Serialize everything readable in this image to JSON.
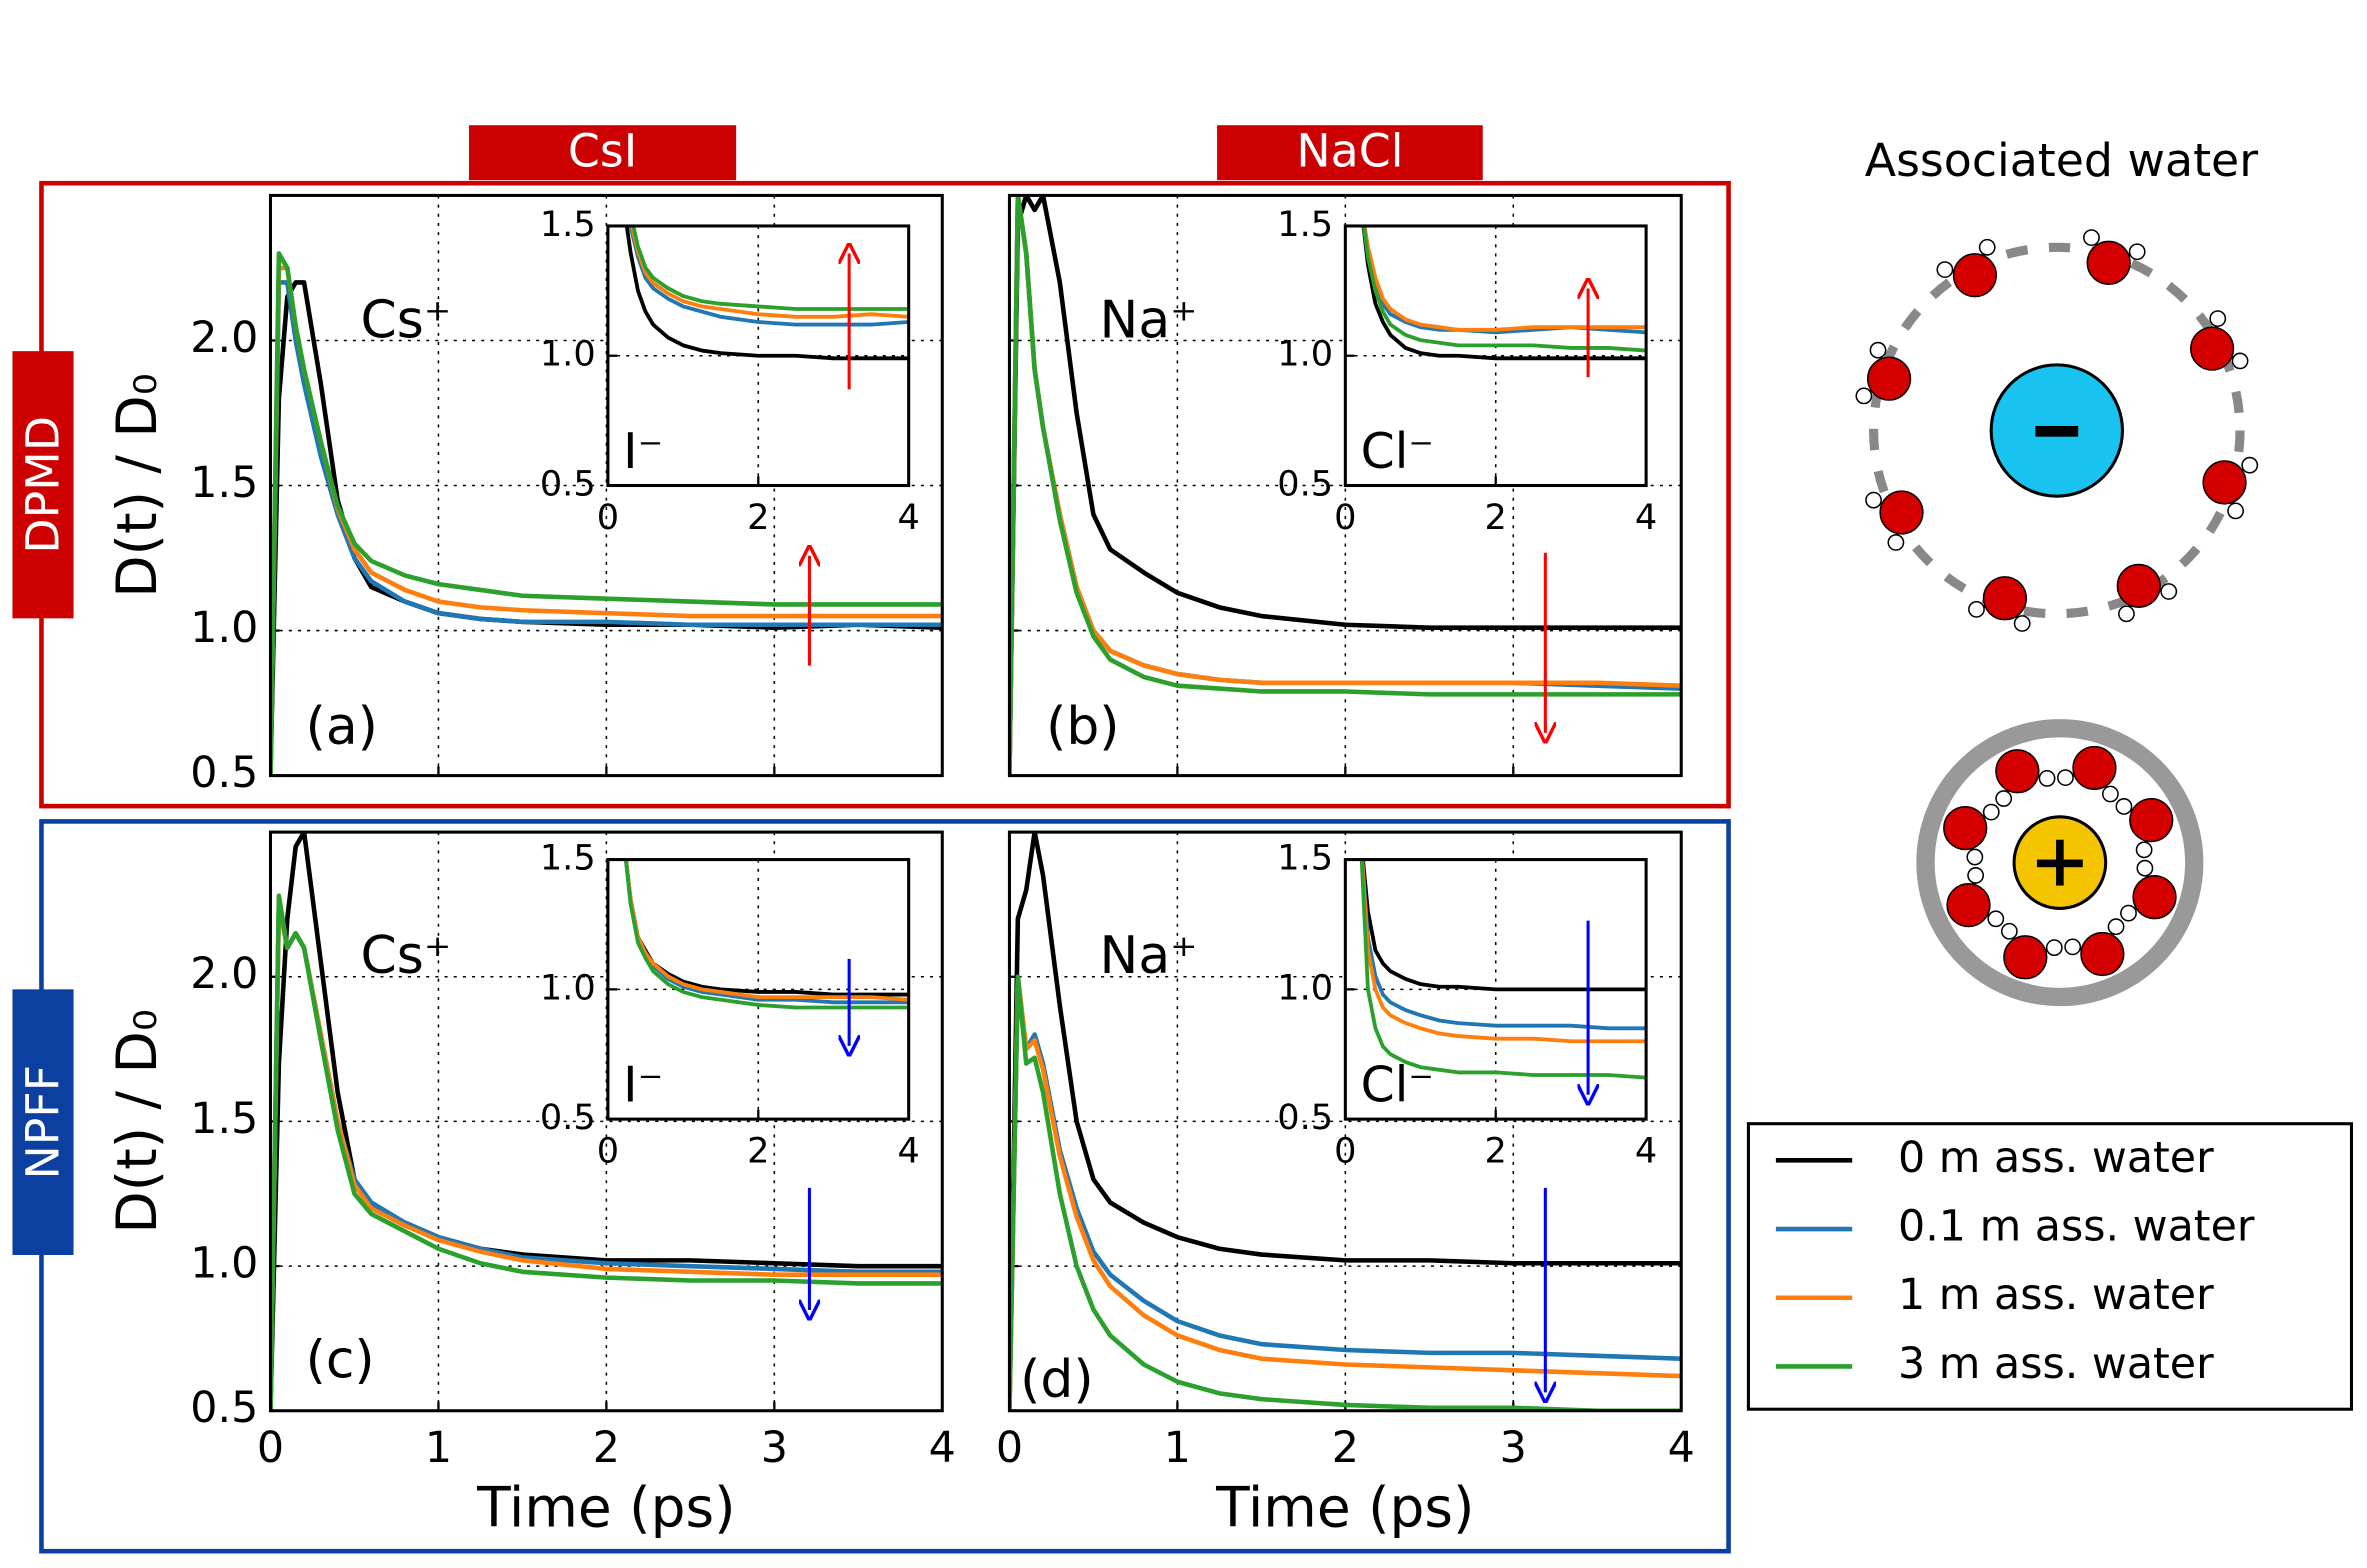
{
  "header": {
    "columns": [
      "CsI",
      "NaCl"
    ],
    "rows": [
      "DPMD",
      "NPFF"
    ],
    "side_title": "Associated water"
  },
  "legend": [
    {
      "label": "0 m ass. water",
      "color": "#000000"
    },
    {
      "label": "0.1 m ass. water",
      "color": "#1f77b4"
    },
    {
      "label": "1 m ass. water",
      "color": "#ff7f0e"
    },
    {
      "label": "3 m ass. water",
      "color": "#2ca02c"
    }
  ],
  "chart_data": [
    {
      "type": "line",
      "ylabel": "D(t) / D₀",
      "annotations": [
        "Cs⁺",
        "(a)"
      ],
      "grid": true,
      "xtick_labels": false,
      "xlim": [
        0,
        4
      ],
      "ylim": [
        0.5,
        2.5
      ],
      "xticks": [
        0,
        1,
        2,
        3,
        4
      ],
      "yticks": [
        {
          "value": 0.5,
          "label": "0.5"
        },
        {
          "value": 1,
          "label": "1.0"
        },
        {
          "value": 1.5,
          "label": "1.5"
        },
        {
          "value": 2,
          "label": "2.0"
        }
      ],
      "x": [
        0,
        0.05,
        0.1,
        0.15,
        0.2,
        0.3,
        0.4,
        0.5,
        0.6,
        0.8,
        1.0,
        1.25,
        1.5,
        2.0,
        2.5,
        3.0,
        3.5,
        4.0
      ],
      "series": [
        {
          "color": "#000000",
          "values": [
            0.5,
            1.8,
            2.15,
            2.2,
            2.2,
            1.85,
            1.45,
            1.25,
            1.15,
            1.1,
            1.06,
            1.04,
            1.03,
            1.02,
            1.02,
            1.01,
            1.02,
            1.01
          ]
        },
        {
          "color": "#1f77b4",
          "values": [
            0.5,
            2.2,
            2.2,
            2.0,
            1.85,
            1.6,
            1.4,
            1.25,
            1.17,
            1.1,
            1.06,
            1.04,
            1.03,
            1.03,
            1.02,
            1.02,
            1.02,
            1.02
          ]
        },
        {
          "color": "#ff7f0e",
          "values": [
            0.5,
            2.25,
            2.25,
            2.05,
            1.9,
            1.65,
            1.42,
            1.28,
            1.2,
            1.14,
            1.1,
            1.08,
            1.07,
            1.06,
            1.05,
            1.05,
            1.05,
            1.05
          ]
        },
        {
          "color": "#2ca02c",
          "values": [
            0.5,
            2.3,
            2.25,
            2.05,
            1.9,
            1.65,
            1.43,
            1.3,
            1.24,
            1.19,
            1.16,
            1.14,
            1.12,
            1.11,
            1.1,
            1.09,
            1.09,
            1.09
          ]
        }
      ]
    },
    {
      "type": "line",
      "annotations": [
        "I⁻"
      ],
      "grid": true,
      "xlim": [
        0,
        4
      ],
      "ylim": [
        0.5,
        1.5
      ],
      "xticks": [
        0,
        2,
        4
      ],
      "yticks": [
        {
          "value": 0.5,
          "label": "0.5"
        },
        {
          "value": 1,
          "label": "1.0"
        },
        {
          "value": 1.5,
          "label": "1.5"
        }
      ],
      "x": [
        0.2,
        0.3,
        0.4,
        0.5,
        0.6,
        0.8,
        1.0,
        1.25,
        1.5,
        2.0,
        2.5,
        3.0,
        3.5,
        4.0
      ],
      "series": [
        {
          "color": "#000000",
          "values": [
            1.6,
            1.4,
            1.25,
            1.17,
            1.12,
            1.07,
            1.04,
            1.02,
            1.01,
            1.0,
            1.0,
            0.99,
            0.99,
            0.99
          ]
        },
        {
          "color": "#1f77b4",
          "values": [
            1.7,
            1.5,
            1.38,
            1.3,
            1.26,
            1.22,
            1.19,
            1.17,
            1.15,
            1.13,
            1.12,
            1.12,
            1.12,
            1.13
          ]
        },
        {
          "color": "#ff7f0e",
          "values": [
            1.7,
            1.52,
            1.4,
            1.32,
            1.28,
            1.24,
            1.21,
            1.19,
            1.18,
            1.16,
            1.15,
            1.15,
            1.16,
            1.15
          ]
        },
        {
          "color": "#2ca02c",
          "values": [
            1.75,
            1.55,
            1.42,
            1.34,
            1.3,
            1.26,
            1.23,
            1.21,
            1.2,
            1.19,
            1.18,
            1.18,
            1.18,
            1.18
          ]
        }
      ]
    },
    {
      "type": "line",
      "annotations": [
        "Na⁺",
        "(b)"
      ],
      "grid": true,
      "xtick_labels": false,
      "ytick_labels": false,
      "xlim": [
        0,
        4
      ],
      "ylim": [
        0.5,
        2.5
      ],
      "xticks": [
        0,
        1,
        2,
        3,
        4
      ],
      "yticks": [
        {
          "value": 0.5,
          "label": "0.5"
        },
        {
          "value": 1,
          "label": "1.0"
        },
        {
          "value": 1.5,
          "label": "1.5"
        },
        {
          "value": 2,
          "label": "2.0"
        }
      ],
      "x": [
        0,
        0.05,
        0.1,
        0.15,
        0.2,
        0.3,
        0.4,
        0.5,
        0.6,
        0.8,
        1.0,
        1.25,
        1.5,
        2.0,
        2.5,
        3.0,
        3.5,
        4.0
      ],
      "series": [
        {
          "color": "#000000",
          "values": [
            0.5,
            2.4,
            2.5,
            2.45,
            2.5,
            2.2,
            1.75,
            1.4,
            1.28,
            1.2,
            1.13,
            1.08,
            1.05,
            1.02,
            1.01,
            1.01,
            1.01,
            1.01
          ]
        },
        {
          "color": "#1f77b4",
          "values": [
            0.5,
            2.5,
            2.3,
            1.9,
            1.7,
            1.4,
            1.15,
            1.0,
            0.93,
            0.88,
            0.85,
            0.83,
            0.82,
            0.82,
            0.82,
            0.82,
            0.81,
            0.8
          ]
        },
        {
          "color": "#ff7f0e",
          "values": [
            0.5,
            2.5,
            2.3,
            1.9,
            1.7,
            1.4,
            1.15,
            1.0,
            0.93,
            0.88,
            0.85,
            0.83,
            0.82,
            0.82,
            0.82,
            0.82,
            0.82,
            0.81
          ]
        },
        {
          "color": "#2ca02c",
          "values": [
            0.5,
            2.5,
            2.3,
            1.9,
            1.7,
            1.38,
            1.13,
            0.98,
            0.9,
            0.84,
            0.81,
            0.8,
            0.79,
            0.79,
            0.78,
            0.78,
            0.78,
            0.78
          ]
        }
      ]
    },
    {
      "type": "line",
      "annotations": [
        "Cl⁻"
      ],
      "grid": true,
      "xlim": [
        0,
        4
      ],
      "ylim": [
        0.5,
        1.5
      ],
      "xticks": [
        0,
        2,
        4
      ],
      "yticks": [
        {
          "value": 0.5,
          "label": "0.5"
        },
        {
          "value": 1,
          "label": "1.0"
        },
        {
          "value": 1.5,
          "label": "1.5"
        }
      ],
      "x": [
        0.2,
        0.3,
        0.4,
        0.5,
        0.6,
        0.8,
        1.0,
        1.25,
        1.5,
        2.0,
        2.5,
        3.0,
        3.5,
        4.0
      ],
      "series": [
        {
          "color": "#000000",
          "values": [
            1.6,
            1.35,
            1.2,
            1.13,
            1.08,
            1.03,
            1.01,
            1.0,
            1.0,
            0.99,
            0.99,
            0.99,
            0.99,
            0.99
          ]
        },
        {
          "color": "#1f77b4",
          "values": [
            1.6,
            1.4,
            1.28,
            1.2,
            1.16,
            1.13,
            1.11,
            1.1,
            1.1,
            1.09,
            1.1,
            1.11,
            1.1,
            1.09
          ]
        },
        {
          "color": "#ff7f0e",
          "values": [
            1.6,
            1.42,
            1.3,
            1.22,
            1.18,
            1.14,
            1.12,
            1.11,
            1.1,
            1.1,
            1.11,
            1.11,
            1.11,
            1.11
          ]
        },
        {
          "color": "#2ca02c",
          "values": [
            1.6,
            1.38,
            1.25,
            1.17,
            1.12,
            1.08,
            1.06,
            1.05,
            1.04,
            1.04,
            1.04,
            1.03,
            1.03,
            1.02
          ]
        }
      ]
    },
    {
      "type": "line",
      "ylabel": "D(t) / D₀",
      "xlabel": "Time (ps)",
      "annotations": [
        "Cs⁺",
        "(c)"
      ],
      "grid": true,
      "xlim": [
        0,
        4
      ],
      "ylim": [
        0.5,
        2.5
      ],
      "xticks": [
        0,
        1,
        2,
        3,
        4
      ],
      "yticks": [
        {
          "value": 0.5,
          "label": "0.5"
        },
        {
          "value": 1,
          "label": "1.0"
        },
        {
          "value": 1.5,
          "label": "1.5"
        },
        {
          "value": 2,
          "label": "2.0"
        }
      ],
      "x": [
        0,
        0.05,
        0.1,
        0.15,
        0.2,
        0.3,
        0.4,
        0.5,
        0.6,
        0.8,
        1.0,
        1.25,
        1.5,
        2.0,
        2.5,
        3.0,
        3.5,
        4.0
      ],
      "series": [
        {
          "color": "#000000",
          "values": [
            0.5,
            1.7,
            2.2,
            2.45,
            2.5,
            2.05,
            1.6,
            1.3,
            1.2,
            1.15,
            1.1,
            1.06,
            1.04,
            1.02,
            1.02,
            1.01,
            1.0,
            1.0
          ]
        },
        {
          "color": "#1f77b4",
          "values": [
            0.5,
            2.25,
            2.1,
            2.15,
            2.1,
            1.8,
            1.5,
            1.3,
            1.22,
            1.15,
            1.1,
            1.06,
            1.03,
            1.01,
            1.0,
            0.99,
            0.98,
            0.98
          ]
        },
        {
          "color": "#ff7f0e",
          "values": [
            0.5,
            2.25,
            2.1,
            2.15,
            2.1,
            1.8,
            1.5,
            1.28,
            1.2,
            1.14,
            1.09,
            1.05,
            1.02,
            0.99,
            0.98,
            0.97,
            0.97,
            0.97
          ]
        },
        {
          "color": "#2ca02c",
          "values": [
            0.5,
            2.28,
            2.1,
            2.15,
            2.1,
            1.78,
            1.47,
            1.25,
            1.18,
            1.12,
            1.06,
            1.01,
            0.98,
            0.96,
            0.95,
            0.95,
            0.94,
            0.94
          ]
        }
      ]
    },
    {
      "type": "line",
      "annotations": [
        "I⁻"
      ],
      "grid": true,
      "xlim": [
        0,
        4
      ],
      "ylim": [
        0.5,
        1.5
      ],
      "xticks": [
        0,
        2,
        4
      ],
      "yticks": [
        {
          "value": 0.5,
          "label": "0.5"
        },
        {
          "value": 1,
          "label": "1.0"
        },
        {
          "value": 1.5,
          "label": "1.5"
        }
      ],
      "x": [
        0.2,
        0.3,
        0.4,
        0.5,
        0.6,
        0.8,
        1.0,
        1.25,
        1.5,
        2.0,
        2.5,
        3.0,
        3.5,
        4.0
      ],
      "series": [
        {
          "color": "#000000",
          "values": [
            1.6,
            1.35,
            1.2,
            1.15,
            1.1,
            1.06,
            1.03,
            1.01,
            1.0,
            0.99,
            0.99,
            0.98,
            0.98,
            0.98
          ]
        },
        {
          "color": "#1f77b4",
          "values": [
            1.6,
            1.35,
            1.2,
            1.14,
            1.09,
            1.04,
            1.01,
            0.99,
            0.98,
            0.96,
            0.96,
            0.95,
            0.95,
            0.95
          ]
        },
        {
          "color": "#ff7f0e",
          "values": [
            1.6,
            1.35,
            1.2,
            1.14,
            1.1,
            1.05,
            1.02,
            1.0,
            0.99,
            0.97,
            0.97,
            0.97,
            0.97,
            0.96
          ]
        },
        {
          "color": "#2ca02c",
          "values": [
            1.6,
            1.33,
            1.18,
            1.12,
            1.07,
            1.02,
            0.99,
            0.97,
            0.96,
            0.94,
            0.93,
            0.93,
            0.93,
            0.93
          ]
        }
      ]
    },
    {
      "type": "line",
      "xlabel": "Time (ps)",
      "annotations": [
        "Na⁺",
        "(d)"
      ],
      "grid": true,
      "ytick_labels": false,
      "xlim": [
        0,
        4
      ],
      "ylim": [
        0.5,
        2.5
      ],
      "xticks": [
        0,
        1,
        2,
        3,
        4
      ],
      "yticks": [
        {
          "value": 0.5,
          "label": "0.5"
        },
        {
          "value": 1,
          "label": "1.0"
        },
        {
          "value": 1.5,
          "label": "1.5"
        },
        {
          "value": 2,
          "label": "2.0"
        }
      ],
      "x": [
        0,
        0.05,
        0.1,
        0.15,
        0.2,
        0.3,
        0.4,
        0.5,
        0.6,
        0.8,
        1.0,
        1.25,
        1.5,
        2.0,
        2.5,
        3.0,
        3.5,
        4.0
      ],
      "series": [
        {
          "color": "#000000",
          "values": [
            0.5,
            2.2,
            2.3,
            2.5,
            2.35,
            1.9,
            1.5,
            1.3,
            1.22,
            1.15,
            1.1,
            1.06,
            1.04,
            1.02,
            1.02,
            1.01,
            1.01,
            1.01
          ]
        },
        {
          "color": "#1f77b4",
          "values": [
            0.5,
            2.0,
            1.75,
            1.8,
            1.7,
            1.4,
            1.2,
            1.05,
            0.97,
            0.88,
            0.81,
            0.76,
            0.73,
            0.71,
            0.7,
            0.7,
            0.69,
            0.68
          ]
        },
        {
          "color": "#ff7f0e",
          "values": [
            0.5,
            2.0,
            1.75,
            1.78,
            1.68,
            1.38,
            1.17,
            1.02,
            0.93,
            0.83,
            0.76,
            0.71,
            0.68,
            0.66,
            0.65,
            0.64,
            0.63,
            0.62
          ]
        },
        {
          "color": "#2ca02c",
          "values": [
            0.5,
            2.0,
            1.7,
            1.72,
            1.6,
            1.25,
            1.0,
            0.85,
            0.76,
            0.66,
            0.6,
            0.56,
            0.54,
            0.52,
            0.51,
            0.51,
            0.5,
            0.5
          ]
        }
      ]
    },
    {
      "type": "line",
      "annotations": [
        "Cl⁻"
      ],
      "grid": true,
      "xlim": [
        0,
        4
      ],
      "ylim": [
        0.5,
        1.5
      ],
      "xticks": [
        0,
        2,
        4
      ],
      "yticks": [
        {
          "value": 0.5,
          "label": "0.5"
        },
        {
          "value": 1,
          "label": "1.0"
        },
        {
          "value": 1.5,
          "label": "1.5"
        }
      ],
      "x": [
        0.2,
        0.3,
        0.4,
        0.5,
        0.6,
        0.8,
        1.0,
        1.25,
        1.5,
        2.0,
        2.5,
        3.0,
        3.5,
        4.0
      ],
      "series": [
        {
          "color": "#000000",
          "values": [
            1.6,
            1.3,
            1.15,
            1.1,
            1.07,
            1.04,
            1.02,
            1.01,
            1.01,
            1.0,
            1.0,
            1.0,
            1.0,
            1.0
          ]
        },
        {
          "color": "#1f77b4",
          "values": [
            1.6,
            1.2,
            1.05,
            0.98,
            0.95,
            0.92,
            0.9,
            0.88,
            0.87,
            0.86,
            0.86,
            0.86,
            0.85,
            0.85
          ]
        },
        {
          "color": "#ff7f0e",
          "values": [
            1.6,
            1.15,
            1.0,
            0.93,
            0.9,
            0.87,
            0.85,
            0.83,
            0.82,
            0.81,
            0.81,
            0.8,
            0.8,
            0.8
          ]
        },
        {
          "color": "#2ca02c",
          "values": [
            1.6,
            1.0,
            0.85,
            0.78,
            0.75,
            0.72,
            0.7,
            0.69,
            0.68,
            0.68,
            0.67,
            0.67,
            0.67,
            0.66
          ]
        }
      ]
    }
  ]
}
